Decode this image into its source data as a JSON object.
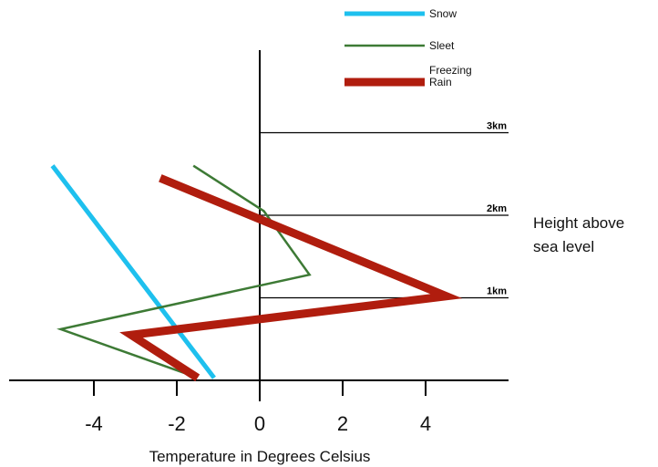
{
  "chart_data": {
    "type": "line",
    "title": "",
    "xlabel": "Temperature in Degrees Celsius",
    "ylabel_lines": [
      "Height above",
      "sea level"
    ],
    "xlim": [
      -6,
      6
    ],
    "ylim": [
      0,
      3.3
    ],
    "x_ticks": [
      -4,
      -2,
      0,
      2,
      4
    ],
    "height_levels": [
      {
        "value": 1,
        "label": "1km"
      },
      {
        "value": 2,
        "label": "2km"
      },
      {
        "value": 3,
        "label": "3km"
      }
    ],
    "series": [
      {
        "name": "Snow",
        "color": "#1ec0ee",
        "x": [
          -1.1,
          -5.0
        ],
        "y": [
          0.03,
          2.6
        ]
      },
      {
        "name": "Sleet",
        "color": "#3d7a35",
        "x": [
          -1.6,
          -4.8,
          1.2,
          0.1,
          -1.6
        ],
        "y": [
          0.05,
          0.62,
          1.28,
          2.05,
          2.6
        ]
      },
      {
        "name": "Freezing Rain",
        "lines": [
          "Freezing",
          "Rain"
        ],
        "color": "#b01d0e",
        "x": [
          -1.5,
          -3.1,
          4.5,
          -2.4
        ],
        "y": [
          0.03,
          0.55,
          1.02,
          2.45
        ]
      }
    ],
    "grid": false,
    "legend_position": "top-right"
  }
}
